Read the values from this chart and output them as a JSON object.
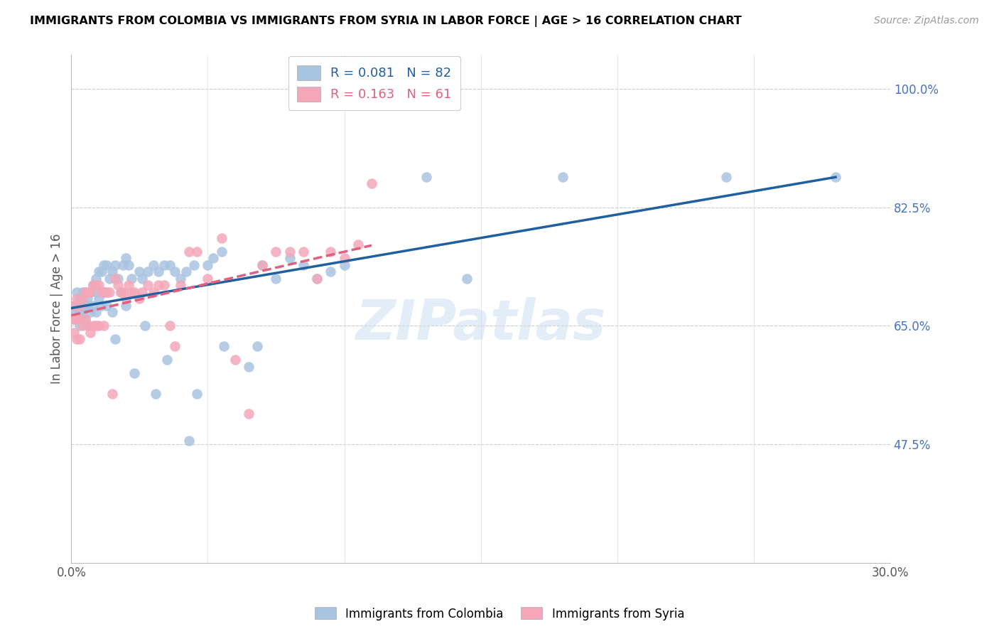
{
  "title": "IMMIGRANTS FROM COLOMBIA VS IMMIGRANTS FROM SYRIA IN LABOR FORCE | AGE > 16 CORRELATION CHART",
  "source": "Source: ZipAtlas.com",
  "ylabel": "In Labor Force | Age > 16",
  "xlim": [
    0.0,
    0.3
  ],
  "ylim": [
    0.3,
    1.05
  ],
  "xticks": [
    0.0,
    0.05,
    0.1,
    0.15,
    0.2,
    0.25,
    0.3
  ],
  "xticklabels": [
    "0.0%",
    "",
    "",
    "",
    "",
    "",
    "30.0%"
  ],
  "ytick_right_values": [
    1.0,
    0.825,
    0.65,
    0.475
  ],
  "ytick_right_labels": [
    "100.0%",
    "82.5%",
    "65.0%",
    "47.5%"
  ],
  "colombia_R": 0.081,
  "colombia_N": 82,
  "syria_R": 0.163,
  "syria_N": 61,
  "colombia_color": "#a8c4e0",
  "syria_color": "#f4a7b9",
  "colombia_line_color": "#2060a0",
  "syria_line_color": "#e06080",
  "legend_label_colombia": "Immigrants from Colombia",
  "legend_label_syria": "Immigrants from Syria",
  "watermark": "ZIPatlas",
  "colombia_scatter_x": [
    0.001,
    0.001,
    0.001,
    0.002,
    0.002,
    0.002,
    0.003,
    0.003,
    0.003,
    0.003,
    0.004,
    0.004,
    0.004,
    0.004,
    0.005,
    0.005,
    0.005,
    0.006,
    0.006,
    0.006,
    0.007,
    0.007,
    0.008,
    0.008,
    0.009,
    0.009,
    0.009,
    0.01,
    0.01,
    0.011,
    0.011,
    0.012,
    0.012,
    0.013,
    0.013,
    0.014,
    0.015,
    0.015,
    0.016,
    0.016,
    0.017,
    0.018,
    0.019,
    0.02,
    0.02,
    0.021,
    0.022,
    0.023,
    0.025,
    0.026,
    0.027,
    0.028,
    0.03,
    0.031,
    0.032,
    0.034,
    0.035,
    0.036,
    0.038,
    0.04,
    0.042,
    0.043,
    0.045,
    0.046,
    0.05,
    0.052,
    0.055,
    0.056,
    0.065,
    0.068,
    0.07,
    0.075,
    0.08,
    0.085,
    0.09,
    0.095,
    0.1,
    0.13,
    0.145,
    0.18,
    0.24,
    0.28
  ],
  "colombia_scatter_y": [
    0.68,
    0.67,
    0.66,
    0.68,
    0.7,
    0.66,
    0.69,
    0.68,
    0.67,
    0.65,
    0.7,
    0.68,
    0.67,
    0.66,
    0.7,
    0.68,
    0.66,
    0.69,
    0.68,
    0.65,
    0.7,
    0.67,
    0.71,
    0.68,
    0.72,
    0.7,
    0.67,
    0.73,
    0.69,
    0.73,
    0.68,
    0.74,
    0.7,
    0.74,
    0.68,
    0.72,
    0.73,
    0.67,
    0.74,
    0.63,
    0.72,
    0.7,
    0.74,
    0.75,
    0.68,
    0.74,
    0.72,
    0.58,
    0.73,
    0.72,
    0.65,
    0.73,
    0.74,
    0.55,
    0.73,
    0.74,
    0.6,
    0.74,
    0.73,
    0.72,
    0.73,
    0.48,
    0.74,
    0.55,
    0.74,
    0.75,
    0.76,
    0.62,
    0.59,
    0.62,
    0.74,
    0.72,
    0.75,
    0.74,
    0.72,
    0.73,
    0.74,
    0.87,
    0.72,
    0.87,
    0.87,
    0.87
  ],
  "syria_scatter_x": [
    0.001,
    0.001,
    0.001,
    0.002,
    0.002,
    0.002,
    0.003,
    0.003,
    0.003,
    0.004,
    0.004,
    0.005,
    0.005,
    0.006,
    0.006,
    0.007,
    0.007,
    0.008,
    0.008,
    0.009,
    0.009,
    0.01,
    0.01,
    0.011,
    0.012,
    0.012,
    0.013,
    0.014,
    0.015,
    0.016,
    0.017,
    0.018,
    0.019,
    0.02,
    0.021,
    0.022,
    0.023,
    0.025,
    0.026,
    0.028,
    0.03,
    0.032,
    0.034,
    0.036,
    0.038,
    0.04,
    0.043,
    0.046,
    0.05,
    0.055,
    0.06,
    0.065,
    0.07,
    0.075,
    0.08,
    0.085,
    0.09,
    0.095,
    0.1,
    0.105,
    0.11
  ],
  "syria_scatter_y": [
    0.68,
    0.66,
    0.64,
    0.69,
    0.66,
    0.63,
    0.68,
    0.66,
    0.63,
    0.69,
    0.65,
    0.7,
    0.66,
    0.7,
    0.65,
    0.7,
    0.64,
    0.71,
    0.65,
    0.71,
    0.65,
    0.71,
    0.65,
    0.7,
    0.7,
    0.65,
    0.7,
    0.7,
    0.55,
    0.72,
    0.71,
    0.7,
    0.7,
    0.69,
    0.71,
    0.7,
    0.7,
    0.69,
    0.7,
    0.71,
    0.7,
    0.71,
    0.71,
    0.65,
    0.62,
    0.71,
    0.76,
    0.76,
    0.72,
    0.78,
    0.6,
    0.52,
    0.74,
    0.76,
    0.76,
    0.76,
    0.72,
    0.76,
    0.75,
    0.77,
    0.86
  ]
}
